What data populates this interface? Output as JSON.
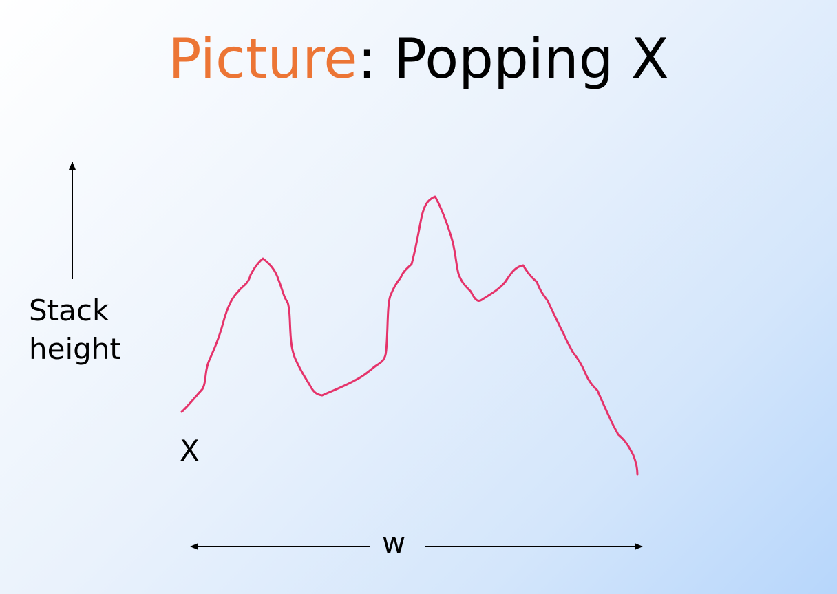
{
  "title": {
    "accent": "Picture",
    "rest": ": Popping X"
  },
  "y_axis_label": {
    "line1": "Stack",
    "line2": "height"
  },
  "curve_start_label": "X",
  "width_label": "w",
  "colors": {
    "title_accent": "#ec7535",
    "curve": "#e5336a",
    "text": "#000000"
  }
}
